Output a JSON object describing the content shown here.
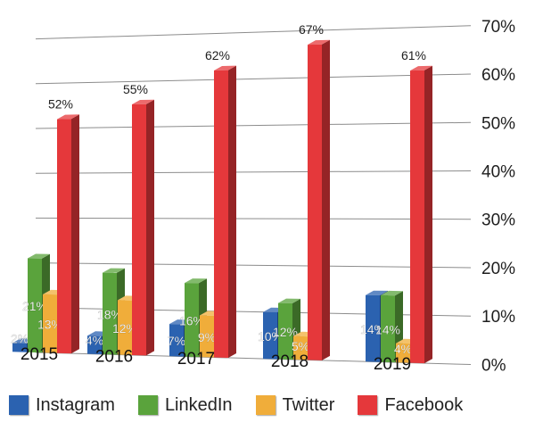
{
  "chart_data": {
    "type": "bar",
    "categories": [
      "2015",
      "2016",
      "2017",
      "2018",
      "2019"
    ],
    "series": [
      {
        "name": "Instagram",
        "color": "#2b62b0",
        "values": [
          2,
          4,
          7,
          10,
          14
        ],
        "labels": [
          "2%",
          "4%",
          "7%",
          "10%",
          "14%"
        ]
      },
      {
        "name": "LinkedIn",
        "color": "#5aa33c",
        "values": [
          21,
          18,
          16,
          12,
          14
        ],
        "labels": [
          "21%",
          "18%",
          "16%",
          "12%",
          "14%"
        ]
      },
      {
        "name": "Twitter",
        "color": "#f0ad3a",
        "values": [
          13,
          12,
          9,
          5,
          4
        ],
        "labels": [
          "13%",
          "12%",
          "9%",
          "5%",
          "4%"
        ]
      },
      {
        "name": "Facebook",
        "color": "#e5383b",
        "values": [
          52,
          55,
          62,
          67,
          61
        ],
        "labels": [
          "52%",
          "55%",
          "62%",
          "67%",
          "61%"
        ]
      }
    ],
    "y_ticks": [
      "0%",
      "10%",
      "20%",
      "30%",
      "40%",
      "50%",
      "60%",
      "70%"
    ],
    "ylim": [
      0,
      70
    ],
    "grid": true,
    "legend_position": "bottom",
    "perspective": "3d-skewed"
  }
}
